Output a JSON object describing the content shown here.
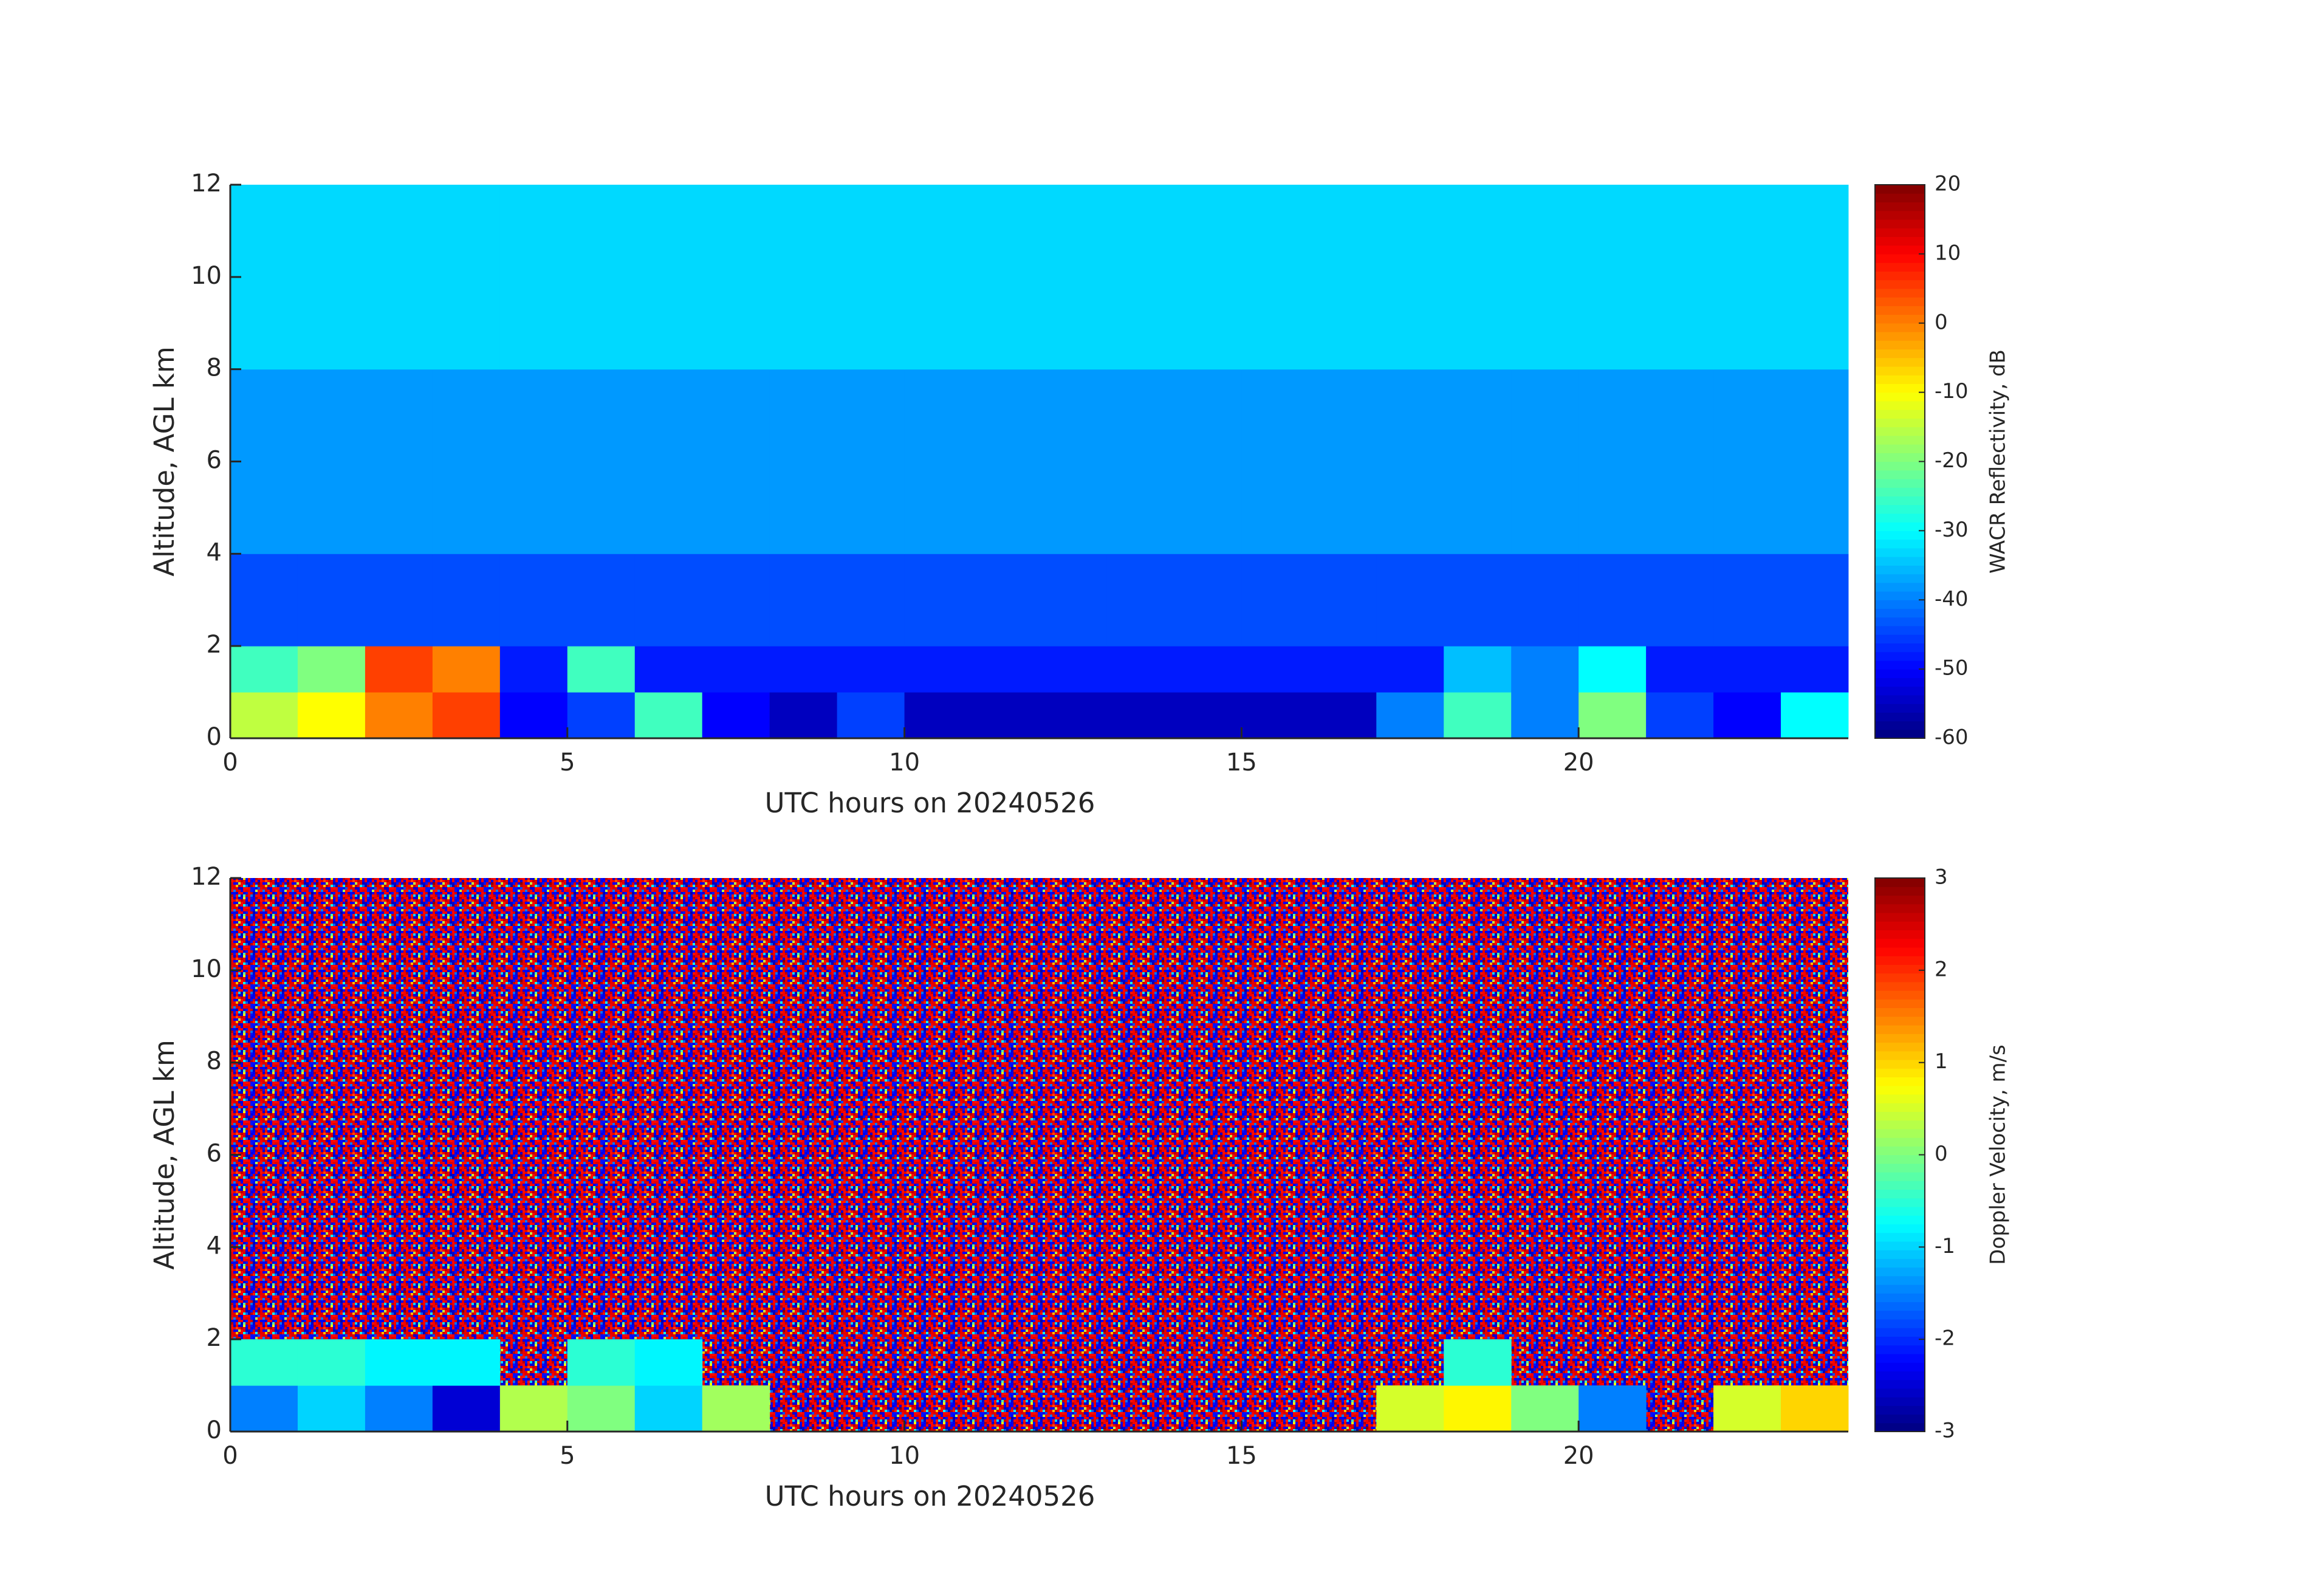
{
  "chart_data": [
    {
      "type": "heatmap",
      "x_label": "UTC hours on 20240526",
      "y_label": "Altitude, AGL km",
      "colorbar_label": "WACR Reflectivity, dB",
      "colormap": "jet",
      "xbins": [
        0,
        1,
        2,
        3,
        4,
        5,
        6,
        7,
        8,
        9,
        10,
        11,
        12,
        13,
        14,
        15,
        16,
        17,
        18,
        19,
        20,
        21,
        22,
        23,
        24
      ],
      "ybins": [
        0,
        1,
        2,
        4,
        8,
        12
      ],
      "z": [
        [
          -15,
          -10,
          0,
          5,
          -50,
          -45,
          -25,
          -50,
          -55,
          -45,
          -55,
          -55,
          -55,
          -55,
          -55,
          -55,
          -55,
          -40,
          -25,
          -40,
          -20,
          -45,
          -50,
          -30
        ],
        [
          -25,
          -20,
          5,
          0,
          -48,
          -25,
          -48,
          -48,
          -48,
          -48,
          -48,
          -48,
          -48,
          -48,
          -48,
          -48,
          -48,
          -48,
          -35,
          -40,
          -30,
          -48,
          -48,
          -48
        ],
        [
          -44,
          -44,
          -44,
          -44,
          -44,
          -44,
          -44,
          -44,
          -44,
          -44,
          -44,
          -44,
          -44,
          -44,
          -44,
          -44,
          -44,
          -44,
          -44,
          -44,
          -44,
          -44,
          -44,
          -44
        ],
        [
          -38,
          -38,
          -38,
          -38,
          -38,
          -38,
          -38,
          -38,
          -38,
          -38,
          -38,
          -38,
          -38,
          -38,
          -38,
          -38,
          -38,
          -38,
          -38,
          -38,
          -38,
          -38,
          -38,
          -38
        ],
        [
          -33,
          -33,
          -33,
          -33,
          -33,
          -33,
          -33,
          -33,
          -33,
          -33,
          -33,
          -33,
          -33,
          -33,
          -33,
          -33,
          -33,
          -33,
          -33,
          -33,
          -33,
          -33,
          -33,
          -33
        ]
      ],
      "xlim": [
        0,
        24
      ],
      "xticks": [
        0,
        5,
        10,
        15,
        20
      ],
      "ylim": [
        0,
        12
      ],
      "yticks": [
        0,
        2,
        4,
        6,
        8,
        10,
        12
      ],
      "clim": [
        -60,
        20
      ],
      "cticks": [
        -60,
        -50,
        -40,
        -30,
        -20,
        -10,
        0,
        10,
        20
      ]
    },
    {
      "type": "heatmap",
      "x_label": "UTC hours on 20240526",
      "y_label": "Altitude, AGL km",
      "colorbar_label": "Doppler Velocity, m/s",
      "colormap": "jet",
      "xbins": [
        0,
        1,
        2,
        3,
        4,
        5,
        6,
        7,
        8,
        9,
        10,
        11,
        12,
        13,
        14,
        15,
        16,
        17,
        18,
        19,
        20,
        21,
        22,
        23,
        24
      ],
      "ybins": [
        0,
        1,
        2,
        4,
        8,
        12
      ],
      "z": [
        [
          -1.5,
          -1,
          -1.5,
          -2.5,
          0.3,
          0,
          -1,
          0.2,
          null,
          null,
          null,
          null,
          null,
          null,
          null,
          null,
          null,
          0.5,
          0.8,
          0,
          -1.5,
          null,
          0.5,
          1
        ],
        [
          -0.5,
          -0.5,
          -0.8,
          -0.8,
          null,
          -0.5,
          -0.8,
          null,
          null,
          null,
          null,
          null,
          null,
          null,
          null,
          null,
          null,
          null,
          -0.5,
          null,
          null,
          null,
          null,
          null
        ],
        [
          null,
          null,
          null,
          null,
          null,
          null,
          null,
          null,
          null,
          null,
          null,
          null,
          null,
          null,
          null,
          null,
          null,
          null,
          null,
          null,
          null,
          null,
          null,
          null
        ],
        [
          null,
          null,
          null,
          null,
          null,
          null,
          null,
          null,
          null,
          null,
          null,
          null,
          null,
          null,
          null,
          null,
          null,
          null,
          null,
          null,
          null,
          null,
          null,
          null
        ],
        [
          null,
          null,
          null,
          null,
          null,
          null,
          null,
          null,
          null,
          null,
          null,
          null,
          null,
          null,
          null,
          null,
          null,
          null,
          null,
          null,
          null,
          null,
          null,
          null
        ]
      ],
      "xlim": [
        0,
        24
      ],
      "xticks": [
        0,
        5,
        10,
        15,
        20
      ],
      "ylim": [
        0,
        12
      ],
      "yticks": [
        0,
        2,
        4,
        6,
        8,
        10,
        12
      ],
      "clim": [
        -3,
        3
      ],
      "cticks": [
        -3,
        -2,
        -1,
        0,
        1,
        2,
        3
      ]
    }
  ]
}
